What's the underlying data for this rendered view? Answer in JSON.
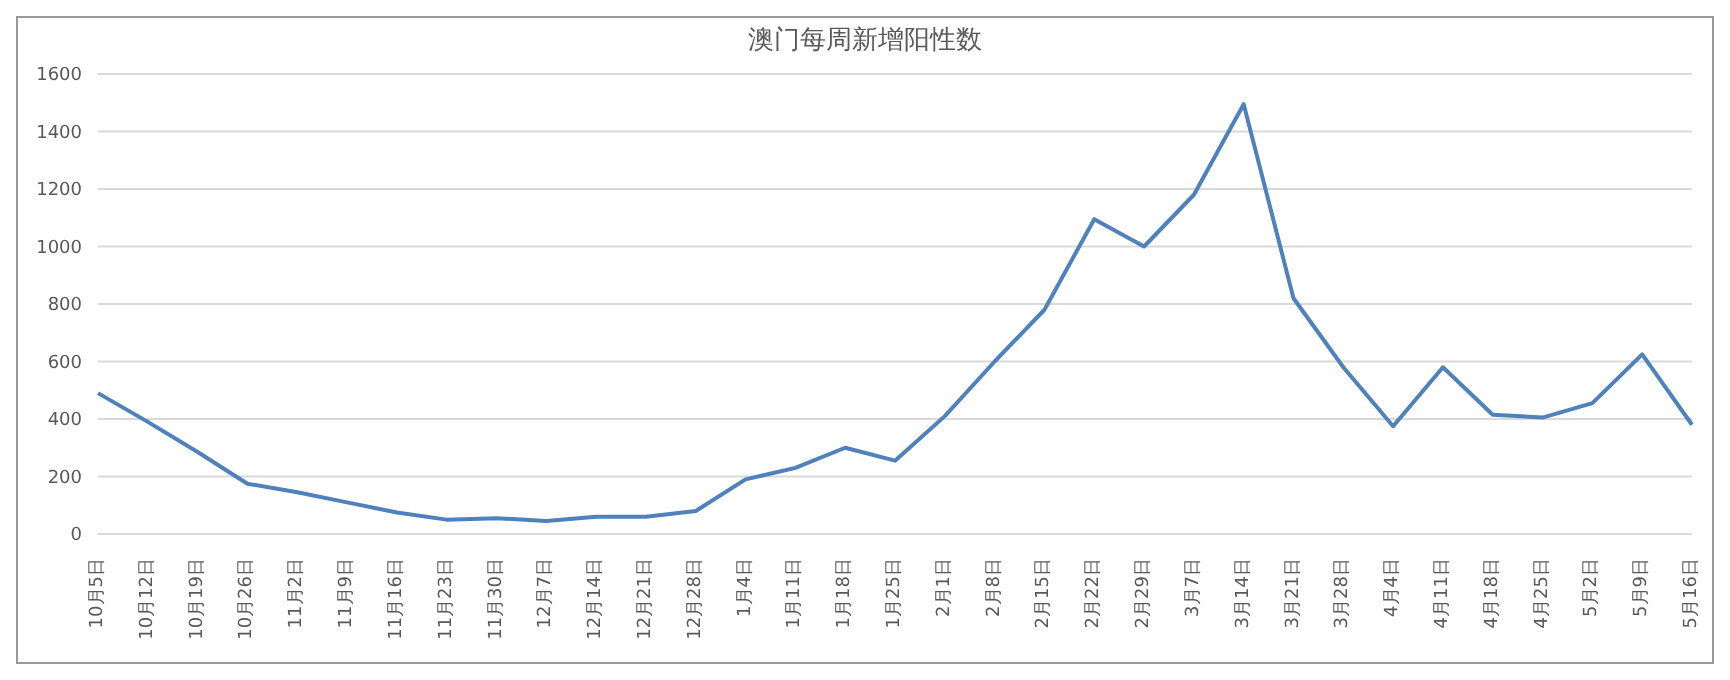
{
  "chart_data": {
    "type": "line",
    "title": "澳门每周新增阳性数",
    "categories": [
      "10月5日",
      "10月12日",
      "10月19日",
      "10月26日",
      "11月2日",
      "11月9日",
      "11月16日",
      "11月23日",
      "11月30日",
      "12月7日",
      "12月14日",
      "12月21日",
      "12月28日",
      "1月4日",
      "1月11日",
      "1月18日",
      "1月25日",
      "2月1日",
      "2月8日",
      "2月15日",
      "2月22日",
      "2月29日",
      "3月7日",
      "3月14日",
      "3月21日",
      "3月28日",
      "4月4日",
      "4月11日",
      "4月18日",
      "4月25日",
      "5月2日",
      "5月9日",
      "5月16日"
    ],
    "series": [
      {
        "color": "#4f81bd",
        "values": [
          490,
          390,
          285,
          175,
          145,
          110,
          75,
          50,
          55,
          45,
          60,
          60,
          80,
          190,
          230,
          300,
          255,
          410,
          600,
          780,
          1095,
          1000,
          1180,
          1495,
          820,
          580,
          375,
          580,
          415,
          405,
          455,
          625,
          380
        ]
      }
    ],
    "ylim": [
      0,
      1600
    ],
    "yticks": [
      0,
      200,
      400,
      600,
      800,
      1000,
      1200,
      1400,
      1600
    ],
    "grid": "y",
    "legend": false,
    "marker": "none",
    "line_style": "solid"
  }
}
